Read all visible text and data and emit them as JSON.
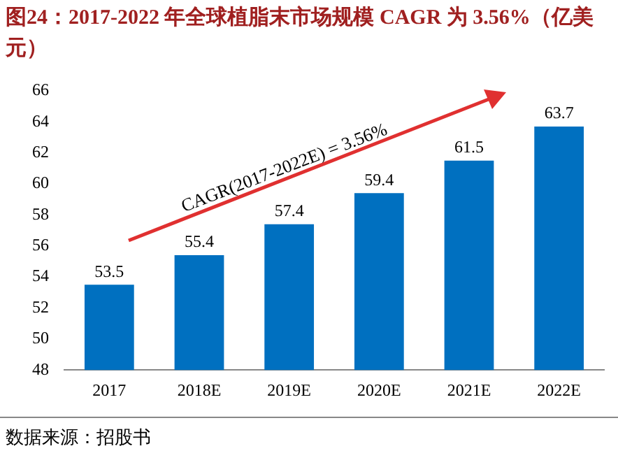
{
  "chart_data": {
    "type": "bar",
    "title": "图24：2017-2022 年全球植脂末市场规模 CAGR 为 3.56%（亿美元）",
    "categories": [
      "2017",
      "2018E",
      "2019E",
      "2020E",
      "2021E",
      "2022E"
    ],
    "values": [
      53.5,
      55.4,
      57.4,
      59.4,
      61.5,
      63.7
    ],
    "color": "#0070c0",
    "ylim": [
      48,
      66
    ],
    "yticks": [
      48,
      50,
      52,
      54,
      56,
      58,
      60,
      62,
      64,
      66
    ],
    "grid": false,
    "data_labels": true,
    "annotations": [
      "CAGR(2017-2022E) = 3.56%",
      "数据来源：招股书"
    ]
  }
}
